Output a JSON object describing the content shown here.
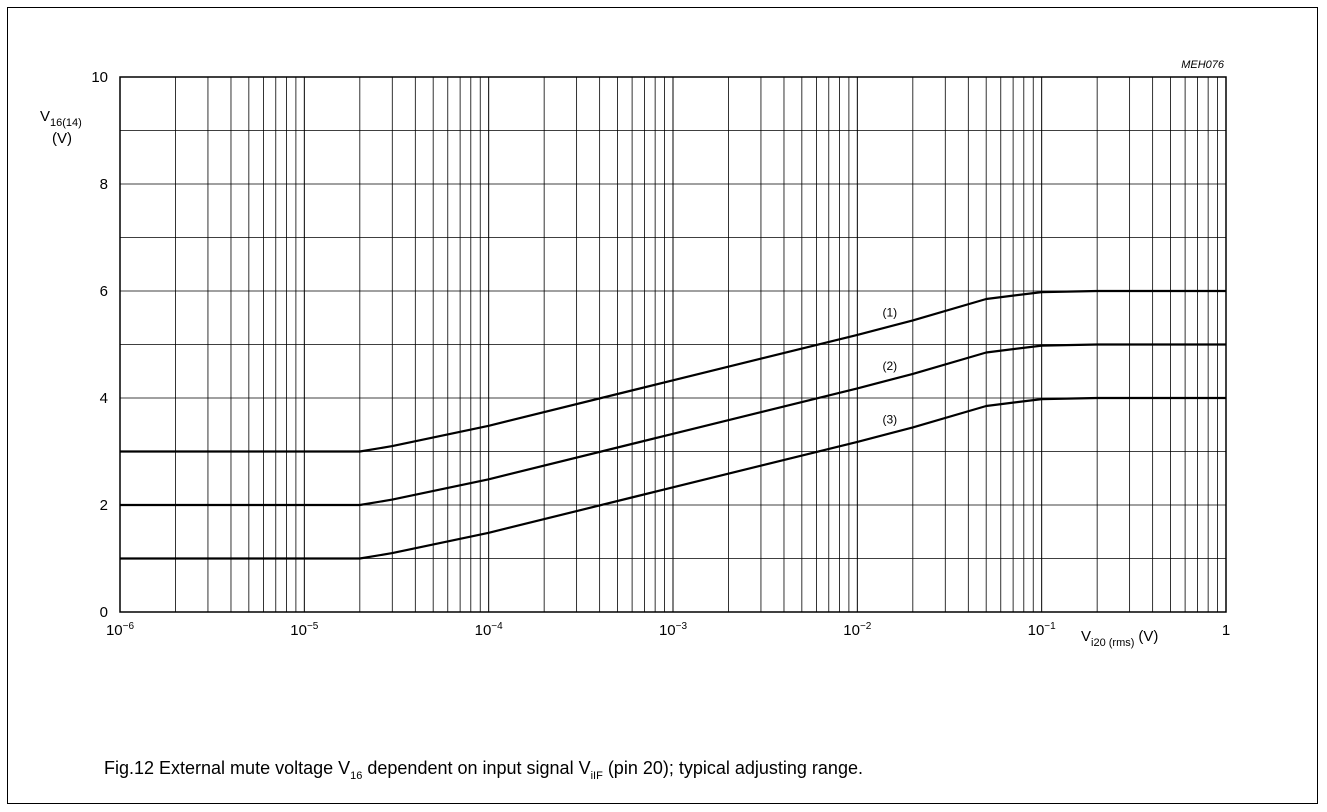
{
  "chart_data": {
    "type": "line",
    "figure_code": "MEH076",
    "caption": {
      "prefix": "Fig.12  External mute voltage V",
      "sub1": "16",
      "middle": " dependent on input signal V",
      "sub2": "iIF",
      "suffix": " (pin 20); typical adjusting range."
    },
    "x_scale": "log",
    "xlim": [
      1e-06,
      1
    ],
    "ylim": [
      0,
      10
    ],
    "grid": true,
    "xlabel": {
      "main": "V",
      "sub": "i20 (rms)",
      "unit": "(V)"
    },
    "ylabel": {
      "main": "V",
      "sub": "16(14)",
      "unit": "(V)"
    },
    "x_ticks": [
      {
        "value": 1e-06,
        "base": "10",
        "exp": "−6"
      },
      {
        "value": 1e-05,
        "base": "10",
        "exp": "−5"
      },
      {
        "value": 0.0001,
        "base": "10",
        "exp": "−4"
      },
      {
        "value": 0.001,
        "base": "10",
        "exp": "−3"
      },
      {
        "value": 0.01,
        "base": "10",
        "exp": "−2"
      },
      {
        "value": 0.1,
        "base": "10",
        "exp": "−1"
      },
      {
        "value": 1,
        "base": "1",
        "exp": ""
      }
    ],
    "y_ticks": [
      0,
      2,
      4,
      6,
      8,
      10
    ],
    "series": [
      {
        "name": "(1)",
        "label_at": [
          0.015,
          5.6
        ],
        "x": [
          1e-06,
          2e-05,
          3e-05,
          0.0001,
          0.001,
          0.01,
          0.02,
          0.05,
          0.1,
          0.2,
          1
        ],
        "y": [
          3,
          3,
          3.1,
          3.48,
          4.33,
          5.18,
          5.45,
          5.85,
          5.98,
          6,
          6
        ]
      },
      {
        "name": "(2)",
        "label_at": [
          0.015,
          4.6
        ],
        "x": [
          1e-06,
          2e-05,
          3e-05,
          0.0001,
          0.001,
          0.01,
          0.02,
          0.05,
          0.1,
          0.2,
          1
        ],
        "y": [
          2,
          2,
          2.1,
          2.48,
          3.33,
          4.18,
          4.45,
          4.85,
          4.98,
          5,
          5
        ]
      },
      {
        "name": "(3)",
        "label_at": [
          0.015,
          3.6
        ],
        "x": [
          1e-06,
          2e-05,
          3e-05,
          0.0001,
          0.001,
          0.01,
          0.02,
          0.05,
          0.1,
          0.2,
          1
        ],
        "y": [
          1,
          1,
          1.1,
          1.48,
          2.33,
          3.18,
          3.45,
          3.85,
          3.98,
          4,
          4
        ]
      }
    ]
  }
}
